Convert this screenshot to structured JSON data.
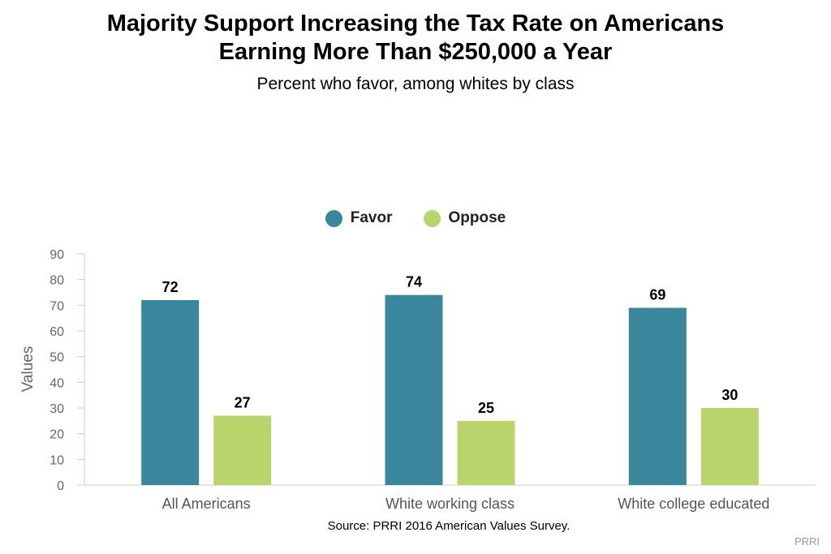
{
  "chart_data": {
    "type": "bar",
    "title_lines": [
      "Majority Support Increasing the Tax Rate on Americans",
      "Earning More Than $250,000 a Year"
    ],
    "subtitle": "Percent who favor, among whites by class",
    "categories": [
      "All Americans",
      "White working class",
      "White college educated"
    ],
    "series": [
      {
        "name": "Favor",
        "color": "#3a879d",
        "values": [
          72,
          74,
          69
        ]
      },
      {
        "name": "Oppose",
        "color": "#b9d46a",
        "values": [
          27,
          25,
          30
        ]
      }
    ],
    "xlabel": "",
    "ylabel": "Values",
    "ylim": [
      0,
      90
    ],
    "yticks": [
      0,
      10,
      20,
      30,
      40,
      50,
      60,
      70,
      80,
      90
    ],
    "legend_position": "top-center",
    "grid": false
  },
  "source": "Source: PRRI 2016 American Values Survey.",
  "credit": "PRRI"
}
